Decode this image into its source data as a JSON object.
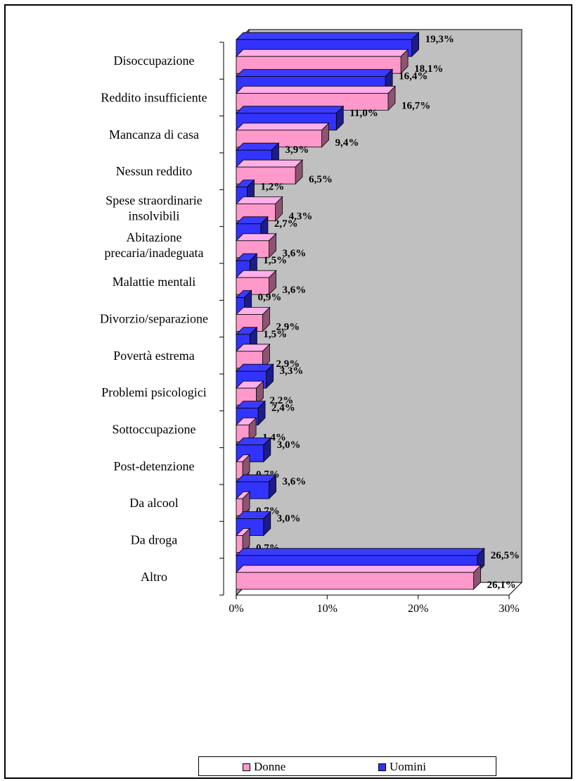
{
  "chart_data": {
    "type": "bar",
    "orientation": "horizontal",
    "categories": [
      "Disoccupazione",
      "Reddito insufficiente",
      "Mancanza di casa",
      "Nessun reddito",
      "Spese straordinarie insolvibili",
      "Abitazione precaria/inadeguata",
      "Malattie mentali",
      "Divorzio/separazione",
      "Povertà estrema",
      "Problemi psicologici",
      "Sottoccupazione",
      "Post-detenzione",
      "Da alcool",
      "Da droga",
      "Altro"
    ],
    "category_lines": [
      [
        "Disoccupazione"
      ],
      [
        "Reddito insufficiente"
      ],
      [
        "Mancanza di casa"
      ],
      [
        "Nessun reddito"
      ],
      [
        "Spese straordinarie",
        "insolvibili"
      ],
      [
        "Abitazione",
        "precaria/inadeguata"
      ],
      [
        "Malattie mentali"
      ],
      [
        "Divorzio/separazione"
      ],
      [
        "Povertà estrema"
      ],
      [
        "Problemi psicologici"
      ],
      [
        "Sottoccupazione"
      ],
      [
        "Post-detenzione"
      ],
      [
        "Da alcool"
      ],
      [
        "Da droga"
      ],
      [
        "Altro"
      ]
    ],
    "series": [
      {
        "name": "Uomini",
        "color": "#3333ff",
        "values": [
          19.3,
          16.4,
          11.0,
          3.9,
          1.2,
          2.7,
          1.5,
          0.9,
          1.5,
          3.3,
          2.4,
          3.0,
          3.6,
          3.0,
          26.5
        ],
        "labels": [
          "19,3%",
          "16,4%",
          "11,0%",
          "3,9%",
          "1,2%",
          "2,7%",
          "1,5%",
          "0,9%",
          "1,5%",
          "3,3%",
          "2,4%",
          "3,0%",
          "3,6%",
          "3,0%",
          "26,5%"
        ]
      },
      {
        "name": "Donne",
        "color": "#ff99cc",
        "values": [
          18.1,
          16.7,
          9.4,
          6.5,
          4.3,
          3.6,
          3.6,
          2.9,
          2.9,
          2.2,
          1.4,
          0.7,
          0.7,
          0.7,
          26.1
        ],
        "labels": [
          "18,1%",
          "16,7%",
          "9,4%",
          "6,5%",
          "4,3%",
          "3,6%",
          "3,6%",
          "2,9%",
          "2,9%",
          "2,2%",
          "1,4%",
          "0,7%",
          "0,7%",
          "0,7%",
          "26,1%"
        ]
      }
    ],
    "xlim": [
      0,
      30
    ],
    "ticks": [
      "0%",
      "10%",
      "20%",
      "30%"
    ],
    "grid": false,
    "legend_position": "bottom",
    "legend_entries": [
      "Donne",
      "Uomini"
    ],
    "wall_color": "#c0c0c0"
  }
}
